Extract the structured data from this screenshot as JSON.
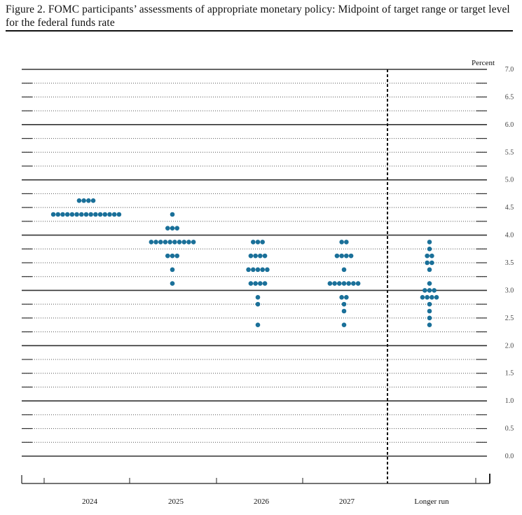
{
  "chart_data": {
    "type": "scatter",
    "title": "Figure 2.  FOMC participants’ assessments of appropriate monetary policy:  Midpoint of target range or target level for the federal funds rate",
    "ylabel": "Percent",
    "ylim": [
      0,
      7
    ],
    "yticks": [
      "7.0",
      "6.5",
      "6.0",
      "5.5",
      "5.0",
      "4.5",
      "4.0",
      "3.5",
      "3.0",
      "2.5",
      "2.0",
      "1.5",
      "1.0",
      "0.5",
      "0.0"
    ],
    "categories": [
      "2024",
      "2025",
      "2026",
      "2027",
      "Longer run"
    ],
    "grid": true,
    "dot_color": "#1a7099",
    "columns": [
      {
        "label": "2024",
        "dots": [
          {
            "value": 4.625,
            "count": 4
          },
          {
            "value": 4.375,
            "count": 15
          }
        ]
      },
      {
        "label": "2025",
        "dots": [
          {
            "value": 4.375,
            "count": 1
          },
          {
            "value": 4.125,
            "count": 3
          },
          {
            "value": 3.875,
            "count": 10
          },
          {
            "value": 3.625,
            "count": 3
          },
          {
            "value": 3.375,
            "count": 1
          },
          {
            "value": 3.125,
            "count": 1
          }
        ]
      },
      {
        "label": "2026",
        "dots": [
          {
            "value": 3.875,
            "count": 3
          },
          {
            "value": 3.625,
            "count": 4
          },
          {
            "value": 3.375,
            "count": 5
          },
          {
            "value": 3.125,
            "count": 4
          },
          {
            "value": 2.875,
            "count": 1
          },
          {
            "value": 2.75,
            "count": 1
          },
          {
            "value": 2.375,
            "count": 1
          }
        ]
      },
      {
        "label": "2027",
        "dots": [
          {
            "value": 3.875,
            "count": 2
          },
          {
            "value": 3.625,
            "count": 4
          },
          {
            "value": 3.375,
            "count": 1
          },
          {
            "value": 3.125,
            "count": 7
          },
          {
            "value": 2.875,
            "count": 2
          },
          {
            "value": 2.75,
            "count": 1
          },
          {
            "value": 2.625,
            "count": 1
          },
          {
            "value": 2.375,
            "count": 1
          }
        ]
      },
      {
        "label": "Longer run",
        "dots": [
          {
            "value": 3.875,
            "count": 1
          },
          {
            "value": 3.75,
            "count": 1
          },
          {
            "value": 3.625,
            "count": 2
          },
          {
            "value": 3.5,
            "count": 2
          },
          {
            "value": 3.375,
            "count": 1
          },
          {
            "value": 3.125,
            "count": 1
          },
          {
            "value": 3.0,
            "count": 3
          },
          {
            "value": 2.875,
            "count": 4
          },
          {
            "value": 2.75,
            "count": 1
          },
          {
            "value": 2.625,
            "count": 1
          },
          {
            "value": 2.5,
            "count": 1
          },
          {
            "value": 2.375,
            "count": 1
          }
        ]
      }
    ]
  }
}
